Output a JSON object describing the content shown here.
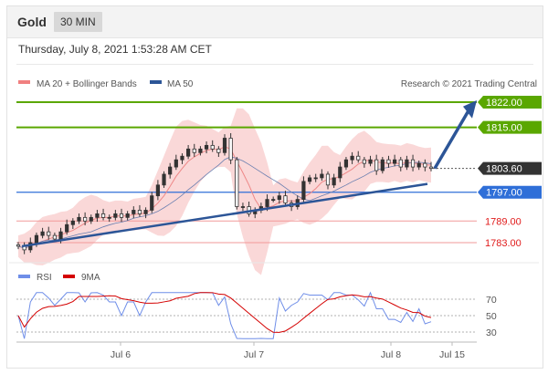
{
  "header": {
    "title": "Gold",
    "interval": "30 MIN"
  },
  "datetime": "Thursday, July 8, 2021 1:53:28 AM CET",
  "legend": {
    "bollinger": "MA 20 + Bollinger Bands",
    "ma50": "MA 50",
    "credit": "Research © 2021 Trading Central"
  },
  "rsi_legend": {
    "rsi": "RSI",
    "ma": "9MA"
  },
  "colors": {
    "green": "#5aa700",
    "blue": "#2f6fd8",
    "red": "#e01b1b",
    "trend": "#2c5597",
    "candle_up": "#333333",
    "band": "#f4a9a9",
    "rsi": "#6f8ee8",
    "rsi_ma": "#d40000"
  },
  "chart_data": {
    "type": "candlestick",
    "x_ticks": [
      "Jul 6",
      "Jul 7",
      "Jul 8",
      "Jul 15"
    ],
    "current_price": 1803.6,
    "levels": [
      {
        "value": 1822.0,
        "label": "1822.00",
        "kind": "green-tag"
      },
      {
        "value": 1815.0,
        "label": "1815.00",
        "kind": "green-tag"
      },
      {
        "value": 1803.6,
        "label": "1803.60",
        "kind": "price-tag"
      },
      {
        "value": 1797.0,
        "label": "1797.00",
        "kind": "blue-tag"
      },
      {
        "value": 1789.0,
        "label": "1789.00",
        "kind": "red-text"
      },
      {
        "value": 1783.0,
        "label": "1783.00",
        "kind": "red-text"
      }
    ],
    "price_range": [
      1778,
      1826
    ],
    "price_path": [
      1782,
      1781,
      1783,
      1785,
      1786,
      1785,
      1784,
      1786,
      1788,
      1789,
      1790,
      1789,
      1790,
      1791,
      1790,
      1790,
      1791,
      1790,
      1791,
      1792,
      1791,
      1792,
      1796,
      1799,
      1802,
      1804,
      1806,
      1807,
      1809,
      1808,
      1809,
      1810,
      1809,
      1808,
      1812,
      1806,
      1793,
      1793,
      1791,
      1792,
      1793,
      1795,
      1795,
      1796,
      1794,
      1793,
      1795,
      1800,
      1801,
      1801,
      1802,
      1799,
      1801,
      1804,
      1806,
      1807,
      1806,
      1805,
      1806,
      1803,
      1806,
      1805,
      1806,
      1804,
      1806,
      1804,
      1805,
      1804,
      1803.6
    ],
    "rsi": {
      "levels": [
        70,
        50,
        30
      ],
      "range": [
        20,
        80
      ]
    }
  }
}
